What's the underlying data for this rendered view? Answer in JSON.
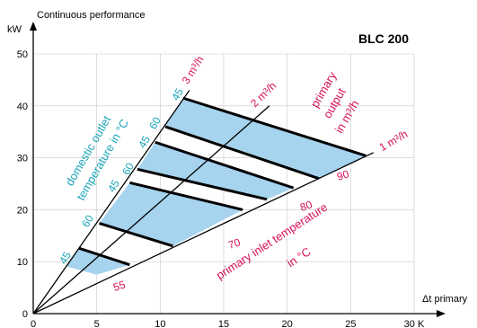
{
  "chart_data": {
    "type": "line",
    "title": "BLC 200",
    "ylabel_top": "Continuous performance",
    "ylabel": "kW",
    "xlabel": "Δt primary",
    "xlim": [
      0,
      30
    ],
    "ylim": [
      0,
      50
    ],
    "x_ticks": [
      {
        "v": 0,
        "label": "0"
      },
      {
        "v": 5,
        "label": "5"
      },
      {
        "v": 10,
        "label": "10"
      },
      {
        "v": 15,
        "label": "15"
      },
      {
        "v": 20,
        "label": "20"
      },
      {
        "v": 25,
        "label": "25"
      },
      {
        "v": 30,
        "label": "30 K"
      }
    ],
    "y_ticks": [
      {
        "v": 0,
        "label": "0"
      },
      {
        "v": 10,
        "label": "10"
      },
      {
        "v": 20,
        "label": "20"
      },
      {
        "v": 30,
        "label": "30"
      },
      {
        "v": 40,
        "label": "40"
      },
      {
        "v": 50,
        "label": "50"
      }
    ],
    "grid": true,
    "colors": {
      "band_fill": "#a6d3ee",
      "domestic_label": "#1aa5b8",
      "primary_label": "#d6105a",
      "line": "#000000"
    },
    "flow_lines": [
      {
        "label": "3 m³/h",
        "x": [
          0,
          12.3
        ],
        "y": [
          0,
          43
        ]
      },
      {
        "label": "2 m³/h",
        "x": [
          0,
          18.6
        ],
        "y": [
          0,
          40
        ]
      },
      {
        "label": "1 m³/h",
        "x": [
          0,
          26.8
        ],
        "y": [
          0,
          31
        ]
      }
    ],
    "domestic_outlet_labels": [
      "45",
      "60",
      "45",
      "60",
      "45",
      "60",
      "45"
    ],
    "primary_inlet_labels": [
      "90",
      "80",
      "70",
      "55"
    ],
    "iso_lines": [
      {
        "x": [
          11.8,
          26.2
        ],
        "y": [
          41.5,
          30.4
        ]
      },
      {
        "x": [
          10.4,
          22.5
        ],
        "y": [
          36.0,
          26.0
        ]
      },
      {
        "x": [
          9.6,
          20.5
        ],
        "y": [
          33.0,
          24.2
        ]
      },
      {
        "x": [
          8.2,
          18.4
        ],
        "y": [
          27.8,
          22.0
        ]
      },
      {
        "x": [
          7.6,
          16.5
        ],
        "y": [
          25.2,
          20.0
        ]
      },
      {
        "x": [
          5.2,
          11.0
        ],
        "y": [
          17.4,
          13.0
        ]
      },
      {
        "x": [
          3.6,
          7.6
        ],
        "y": [
          12.6,
          9.4
        ]
      }
    ],
    "bands": [
      {
        "pts": [
          [
            11.8,
            41.5
          ],
          [
            26.2,
            30.4
          ],
          [
            22.5,
            26.0
          ],
          [
            10.4,
            36.0
          ]
        ]
      },
      {
        "pts": [
          [
            9.6,
            33.0
          ],
          [
            20.5,
            24.2
          ],
          [
            18.4,
            22.0
          ],
          [
            8.2,
            27.8
          ]
        ]
      },
      {
        "pts": [
          [
            7.6,
            25.2
          ],
          [
            16.5,
            20.0
          ],
          [
            11.0,
            13.0
          ],
          [
            5.2,
            17.4
          ]
        ]
      },
      {
        "pts": [
          [
            3.6,
            12.6
          ],
          [
            7.6,
            9.4
          ],
          [
            5.0,
            7.5
          ],
          [
            2.6,
            9.1
          ]
        ]
      }
    ],
    "annotations": {
      "domestic": [
        "domestic outlet",
        "temperature in °C"
      ],
      "primary_output": [
        "primary",
        "output",
        "in m³/h"
      ],
      "primary_inlet": [
        "primary inlet temperature",
        "in °C"
      ]
    }
  }
}
